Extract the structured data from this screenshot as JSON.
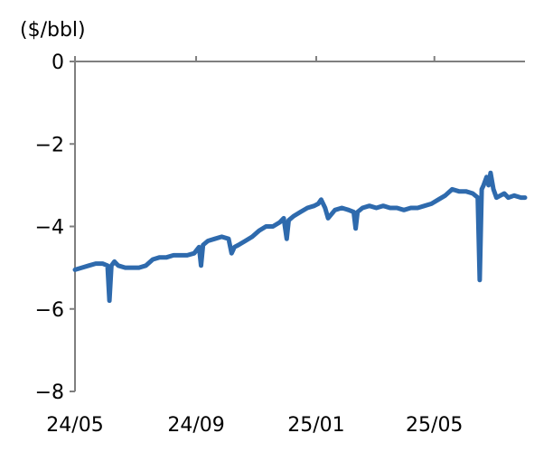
{
  "chart_data": {
    "type": "line",
    "title": "",
    "ylabel": "($/bbl)",
    "xlabel": "",
    "ylim": [
      -8,
      0
    ],
    "yticks": [
      0,
      -2,
      -4,
      -6,
      -8
    ],
    "ytick_labels": [
      "0",
      "−2",
      "−4",
      "−6",
      "−8"
    ],
    "xtick_labels": [
      "24/05",
      "24/09",
      "25/01",
      "25/05"
    ],
    "xtick_dates": [
      "2024-05",
      "2024-09",
      "2025-01",
      "2025-05"
    ],
    "x_start": "2024-05",
    "x_end": "2025-08",
    "grid": false,
    "legend": "none",
    "line_color": "#2e6aad",
    "series": [
      {
        "x": [
          "2024-05-01",
          "2024-05-08",
          "2024-05-15",
          "2024-05-22",
          "2024-05-29",
          "2024-06-03",
          "2024-06-05",
          "2024-06-07",
          "2024-06-10",
          "2024-06-14",
          "2024-06-21",
          "2024-06-28",
          "2024-07-05",
          "2024-07-12",
          "2024-07-19",
          "2024-07-26",
          "2024-08-02",
          "2024-08-09",
          "2024-08-16",
          "2024-08-23",
          "2024-08-30",
          "2024-09-04",
          "2024-09-06",
          "2024-09-08",
          "2024-09-13",
          "2024-09-20",
          "2024-09-27",
          "2024-10-04",
          "2024-10-07",
          "2024-10-10",
          "2024-10-14",
          "2024-10-21",
          "2024-10-28",
          "2024-11-04",
          "2024-11-11",
          "2024-11-18",
          "2024-11-25",
          "2024-11-29",
          "2024-12-02",
          "2024-12-04",
          "2024-12-09",
          "2024-12-16",
          "2024-12-23",
          "2024-12-30",
          "2025-01-03",
          "2025-01-06",
          "2025-01-10",
          "2025-01-13",
          "2025-01-20",
          "2025-01-27",
          "2025-02-03",
          "2025-02-08",
          "2025-02-10",
          "2025-02-12",
          "2025-02-17",
          "2025-02-24",
          "2025-03-03",
          "2025-03-10",
          "2025-03-17",
          "2025-03-24",
          "2025-03-31",
          "2025-04-07",
          "2025-04-14",
          "2025-04-21",
          "2025-04-28",
          "2025-05-05",
          "2025-05-12",
          "2025-05-19",
          "2025-05-26",
          "2025-06-02",
          "2025-06-09",
          "2025-06-14",
          "2025-06-16",
          "2025-06-18",
          "2025-06-20",
          "2025-06-23",
          "2025-06-25",
          "2025-06-27",
          "2025-06-30",
          "2025-07-03",
          "2025-07-07",
          "2025-07-11",
          "2025-07-15",
          "2025-07-21",
          "2025-07-28",
          "2025-08-01"
        ],
        "y": [
          -5.05,
          -5.0,
          -4.95,
          -4.9,
          -4.9,
          -4.95,
          -5.8,
          -4.95,
          -4.85,
          -4.95,
          -5.0,
          -5.0,
          -5.0,
          -4.95,
          -4.8,
          -4.75,
          -4.75,
          -4.7,
          -4.7,
          -4.7,
          -4.65,
          -4.5,
          -4.95,
          -4.45,
          -4.35,
          -4.3,
          -4.25,
          -4.3,
          -4.65,
          -4.5,
          -4.45,
          -4.35,
          -4.25,
          -4.1,
          -4.0,
          -4.0,
          -3.9,
          -3.8,
          -4.3,
          -3.85,
          -3.75,
          -3.65,
          -3.55,
          -3.5,
          -3.45,
          -3.35,
          -3.55,
          -3.8,
          -3.6,
          -3.55,
          -3.6,
          -3.65,
          -4.05,
          -3.65,
          -3.55,
          -3.5,
          -3.55,
          -3.5,
          -3.55,
          -3.55,
          -3.6,
          -3.55,
          -3.55,
          -3.5,
          -3.45,
          -3.35,
          -3.25,
          -3.1,
          -3.15,
          -3.15,
          -3.2,
          -3.3,
          -5.3,
          -3.1,
          -3.0,
          -2.8,
          -3.0,
          -2.7,
          -3.1,
          -3.3,
          -3.25,
          -3.2,
          -3.3,
          -3.25,
          -3.3,
          -3.3
        ]
      }
    ]
  }
}
